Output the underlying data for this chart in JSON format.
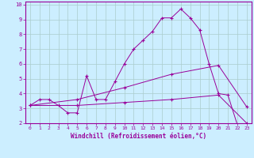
{
  "xlabel": "Windchill (Refroidissement éolien,°C)",
  "background_color": "#cceeff",
  "line_color": "#990099",
  "xlim": [
    -0.5,
    23.5
  ],
  "ylim": [
    2,
    10.2
  ],
  "xticks": [
    0,
    1,
    2,
    3,
    4,
    5,
    6,
    7,
    8,
    9,
    10,
    11,
    12,
    13,
    14,
    15,
    16,
    17,
    18,
    19,
    20,
    21,
    22,
    23
  ],
  "yticks": [
    2,
    3,
    4,
    5,
    6,
    7,
    8,
    9,
    10
  ],
  "grid_color": "#aacccc",
  "series": [
    {
      "x": [
        0,
        1,
        2,
        3,
        4,
        5,
        6,
        7,
        8,
        9,
        10,
        11,
        12,
        13,
        14,
        15,
        16,
        17,
        18,
        19,
        20,
        21,
        22,
        23
      ],
      "y": [
        3.2,
        3.6,
        3.6,
        3.2,
        2.7,
        2.7,
        5.2,
        3.6,
        3.6,
        4.8,
        6.0,
        7.0,
        7.6,
        8.2,
        9.1,
        9.1,
        9.7,
        9.1,
        8.3,
        6.0,
        4.0,
        3.9,
        1.9,
        1.9
      ]
    },
    {
      "x": [
        0,
        5,
        10,
        15,
        20,
        23
      ],
      "y": [
        3.2,
        3.6,
        4.4,
        5.3,
        5.9,
        3.1
      ]
    },
    {
      "x": [
        0,
        5,
        10,
        15,
        20,
        23
      ],
      "y": [
        3.2,
        3.2,
        3.4,
        3.6,
        3.9,
        2.0
      ]
    }
  ]
}
